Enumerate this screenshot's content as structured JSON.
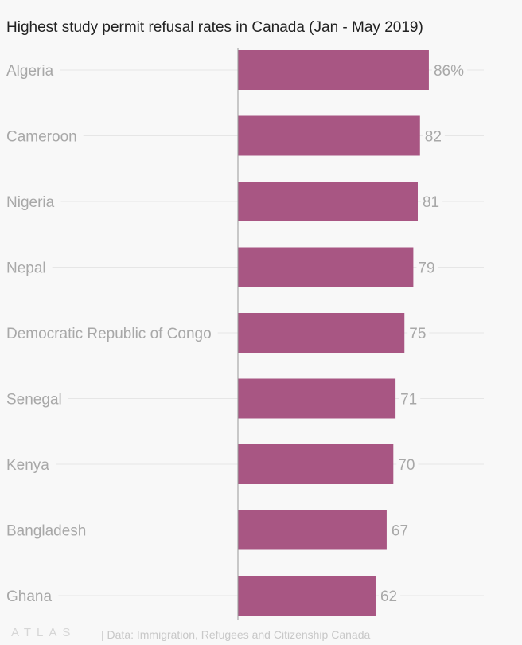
{
  "chart_data": {
    "type": "bar",
    "orientation": "horizontal",
    "title": "Highest study permit refusal rates in Canada (Jan - May 2019)",
    "categories": [
      "Algeria",
      "Cameroon",
      "Nigeria",
      "Nepal",
      "Democratic Republic of Congo",
      "Senegal",
      "Kenya",
      "Bangladesh",
      "Ghana"
    ],
    "values": [
      86,
      82,
      81,
      79,
      75,
      71,
      70,
      67,
      62
    ],
    "value_labels": [
      "86%",
      "82",
      "81",
      "79",
      "75",
      "71",
      "70",
      "67",
      "62"
    ],
    "unit": "%",
    "xlim": [
      0,
      100
    ],
    "bar_color": "#a85683",
    "grid": true
  },
  "footer": {
    "logo": "ATLAS",
    "source": "| Data: Immigration, Refugees and Citizenship Canada"
  }
}
